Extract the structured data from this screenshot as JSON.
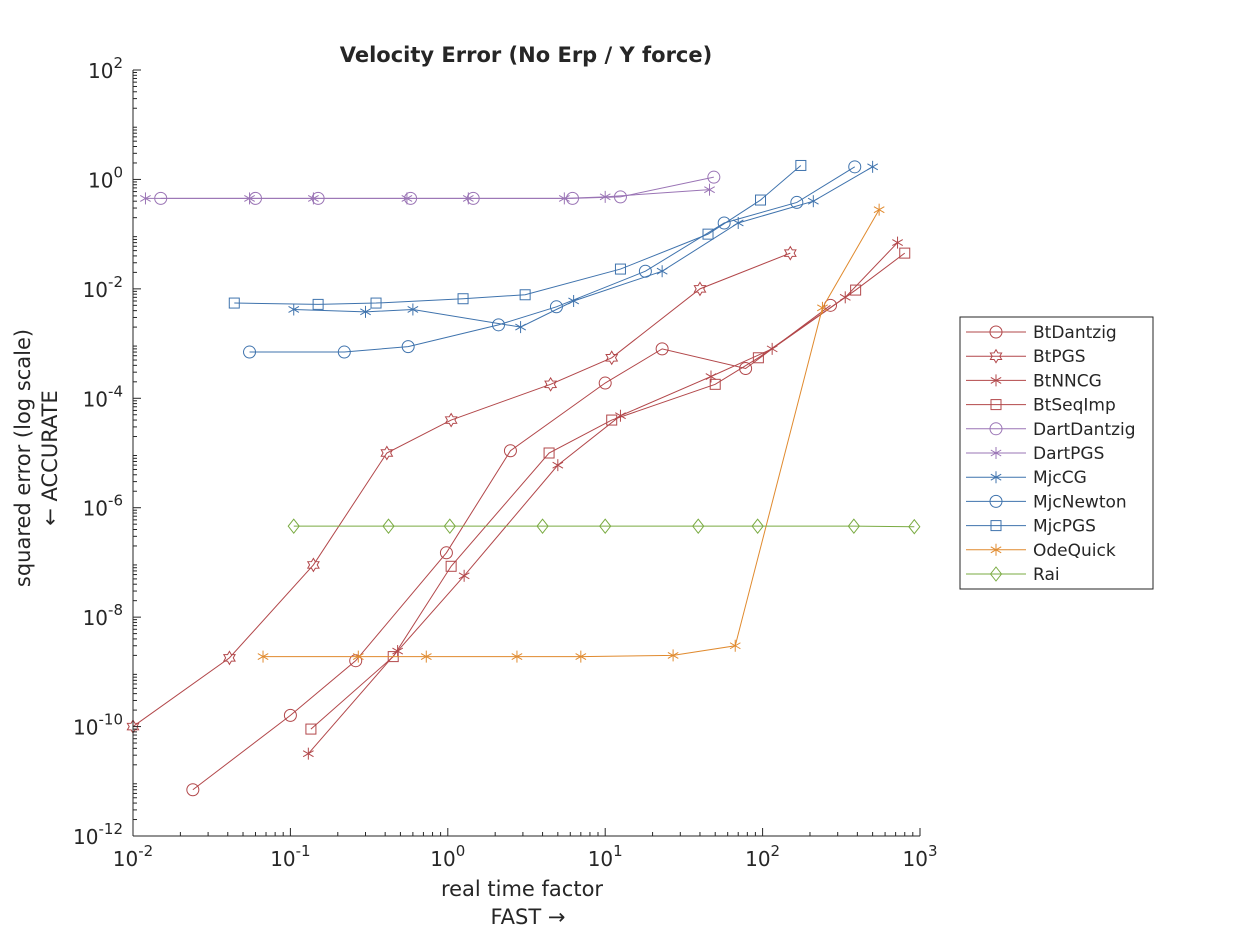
{
  "chart_data": {
    "type": "line",
    "title": "Velocity Error (No Erp / Y force)",
    "xlabel": "real time factor",
    "xlabel_line2": "FAST →",
    "ylabel": "squared error (log scale)",
    "ylabel_line2": "← ACCURATE",
    "x_scale": "log",
    "y_scale": "log",
    "xlim": [
      0.01,
      1000
    ],
    "ylim": [
      1e-12,
      100
    ],
    "grid": false,
    "legend_position": "right",
    "x_ticks": [
      {
        "value": 0.01,
        "base": "10",
        "exp": "-2"
      },
      {
        "value": 0.1,
        "base": "10",
        "exp": "-1"
      },
      {
        "value": 1,
        "base": "10",
        "exp": "0"
      },
      {
        "value": 10,
        "base": "10",
        "exp": "1"
      },
      {
        "value": 100,
        "base": "10",
        "exp": "2"
      },
      {
        "value": 1000,
        "base": "10",
        "exp": "3"
      }
    ],
    "y_ticks": [
      {
        "value": 1e-12,
        "base": "10",
        "exp": "-12"
      },
      {
        "value": 1e-10,
        "base": "10",
        "exp": "-10"
      },
      {
        "value": 1e-08,
        "base": "10",
        "exp": "-8"
      },
      {
        "value": 1e-06,
        "base": "10",
        "exp": "-6"
      },
      {
        "value": 0.0001,
        "base": "10",
        "exp": "-4"
      },
      {
        "value": 0.01,
        "base": "10",
        "exp": "-2"
      },
      {
        "value": 1,
        "base": "10",
        "exp": "0"
      },
      {
        "value": 100,
        "base": "10",
        "exp": "2"
      }
    ],
    "series": [
      {
        "name": "BtDantzig",
        "color": "#b2474a",
        "marker": "circle",
        "x": [
          0.024,
          0.1,
          0.26,
          0.98,
          2.5,
          10,
          23,
          78,
          270
        ],
        "y": [
          7e-12,
          1.6e-10,
          1.6e-09,
          1.5e-07,
          1.1e-05,
          0.00019,
          0.0008,
          0.00035,
          0.005
        ]
      },
      {
        "name": "BtPGS",
        "color": "#b2474a",
        "marker": "hexagram",
        "x": [
          0.01,
          0.041,
          0.14,
          0.41,
          1.05,
          4.5,
          11,
          40,
          150
        ],
        "y": [
          1e-10,
          1.8e-09,
          9e-08,
          1e-05,
          4e-05,
          0.00018,
          0.00055,
          0.01,
          0.045
        ]
      },
      {
        "name": "BtNNCG",
        "color": "#b2474a",
        "marker": "asterisk",
        "x": [
          0.13,
          0.48,
          1.27,
          5,
          12.5,
          47,
          115,
          335,
          720
        ],
        "y": [
          3.2e-11,
          2.4e-09,
          5.7e-08,
          6e-06,
          4.8e-05,
          0.00025,
          0.0008,
          0.007,
          0.07
        ]
      },
      {
        "name": "BtSeqImp",
        "color": "#b2474a",
        "marker": "square",
        "x": [
          0.135,
          0.45,
          1.05,
          4.4,
          11,
          50,
          94,
          390,
          800
        ],
        "y": [
          9e-11,
          1.9e-09,
          8.5e-08,
          1e-05,
          4e-05,
          0.00018,
          0.00055,
          0.0095,
          0.045
        ]
      },
      {
        "name": "DartDantzig",
        "color": "#9a74b5",
        "marker": "circle",
        "x": [
          0.015,
          0.06,
          0.15,
          0.58,
          1.45,
          6.2,
          12.5,
          49
        ],
        "y": [
          0.45,
          0.45,
          0.45,
          0.45,
          0.45,
          0.45,
          0.48,
          1.1
        ]
      },
      {
        "name": "DartPGS",
        "color": "#9a74b5",
        "marker": "asterisk",
        "x": [
          0.012,
          0.055,
          0.14,
          0.55,
          1.35,
          5.5,
          10,
          46
        ],
        "y": [
          0.45,
          0.45,
          0.45,
          0.45,
          0.45,
          0.45,
          0.48,
          0.65
        ]
      },
      {
        "name": "MjcCG",
        "color": "#3f73ad",
        "marker": "asterisk",
        "x": [
          0.105,
          0.3,
          0.6,
          2.9,
          6.3,
          23,
          70,
          210,
          500
        ],
        "y": [
          0.0042,
          0.0038,
          0.0042,
          0.002,
          0.006,
          0.021,
          0.16,
          0.4,
          1.7
        ]
      },
      {
        "name": "MjcNewton",
        "color": "#3f73ad",
        "marker": "circle",
        "x": [
          0.055,
          0.22,
          0.56,
          2.1,
          4.9,
          18,
          57,
          165,
          385
        ],
        "y": [
          0.0007,
          0.0007,
          0.00088,
          0.0022,
          0.0047,
          0.021,
          0.16,
          0.38,
          1.7
        ]
      },
      {
        "name": "MjcPGS",
        "color": "#3f73ad",
        "marker": "square",
        "x": [
          0.044,
          0.15,
          0.35,
          1.25,
          3.1,
          12.5,
          45,
          97,
          175
        ],
        "y": [
          0.0055,
          0.0052,
          0.0055,
          0.0066,
          0.0078,
          0.023,
          0.1,
          0.42,
          1.8
        ]
      },
      {
        "name": "OdeQuick",
        "color": "#e08a2e",
        "marker": "asterisk",
        "x": [
          0.067,
          0.27,
          0.73,
          2.75,
          7,
          27,
          67,
          240,
          550
        ],
        "y": [
          1.9e-09,
          1.9e-09,
          1.9e-09,
          1.9e-09,
          1.9e-09,
          2e-09,
          3e-09,
          0.0045,
          0.28
        ]
      },
      {
        "name": "Rai",
        "color": "#7aab42",
        "marker": "diamond",
        "x": [
          0.105,
          0.42,
          1.03,
          4,
          10,
          39,
          93,
          380,
          920
        ],
        "y": [
          4.6e-07,
          4.6e-07,
          4.6e-07,
          4.6e-07,
          4.6e-07,
          4.6e-07,
          4.6e-07,
          4.6e-07,
          4.5e-07
        ]
      }
    ]
  }
}
